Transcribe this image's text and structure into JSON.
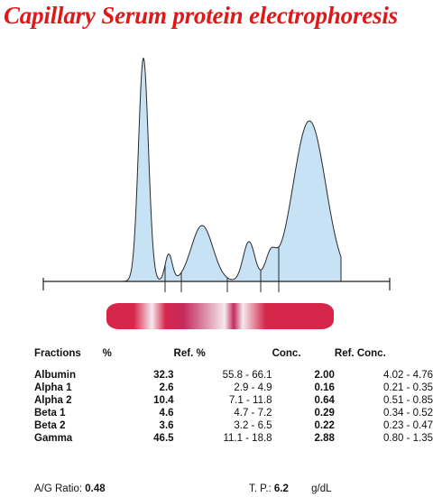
{
  "title": "Capillary Serum protein electrophoresis",
  "chart_data": {
    "type": "area",
    "title": "Capillary Serum protein electrophoresis",
    "fill_color": "#c7e1f5",
    "line_color": "#2a2a2a",
    "fractions": [
      "Albumin",
      "Alpha 1",
      "Alpha 2",
      "Beta 1",
      "Beta 2",
      "Gamma"
    ],
    "percent": [
      32.3,
      2.6,
      10.4,
      4.6,
      3.6,
      46.5
    ]
  },
  "gel_band": {
    "colors": [
      "#d6264a",
      "#c42a5c",
      "#f4e9ef"
    ]
  },
  "table": {
    "headers": [
      "Fractions",
      "%",
      "Ref. %",
      "Conc.",
      "Ref. Conc."
    ],
    "rows": [
      [
        "Albumin",
        "32.3",
        "55.8 - 66.1",
        "2.00",
        "4.02 - 4.76"
      ],
      [
        "Alpha 1",
        "2.6",
        "2.9 -  4.9",
        "0.16",
        "0.21 - 0.35"
      ],
      [
        "Alpha 2",
        "10.4",
        "7.1 - 11.8",
        "0.64",
        "0.51 - 0.85"
      ],
      [
        "Beta 1",
        "4.6",
        "4.7 -  7.2",
        "0.29",
        "0.34 - 0.52"
      ],
      [
        "Beta 2",
        "3.6",
        "3.2 -  6.5",
        "0.22",
        "0.23 - 0.47"
      ],
      [
        "Gamma",
        "46.5",
        "11.1 - 18.8",
        "2.88",
        "0.80 - 1.35"
      ]
    ]
  },
  "footer": {
    "ag_label": "A/G Ratio:",
    "ag_value": "0.48",
    "tp_label": "T. P.:",
    "tp_value": "6.2",
    "tp_unit": "g/dL"
  }
}
